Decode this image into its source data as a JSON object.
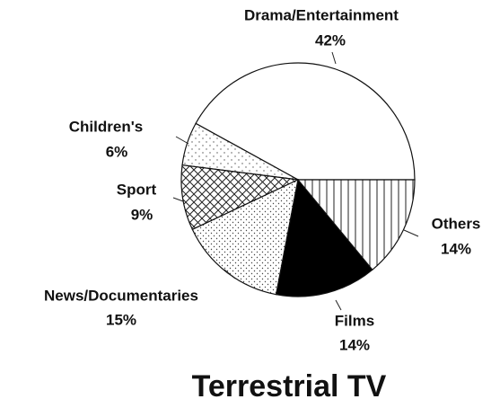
{
  "chart_data": {
    "type": "pie",
    "title": "Terrestrial TV",
    "categories": [
      "Drama/Entertainment",
      "Children's",
      "Sport",
      "News/Documentaries",
      "Films",
      "Others"
    ],
    "values": [
      42,
      6,
      9,
      15,
      14,
      14
    ],
    "value_labels": [
      "42%",
      "6%",
      "9%",
      "15%",
      "14%",
      "14%"
    ],
    "colors": [
      "#ffffff",
      "#ffffff",
      "#ffffff",
      "#ffffff",
      "#000000",
      "#ffffff"
    ]
  }
}
